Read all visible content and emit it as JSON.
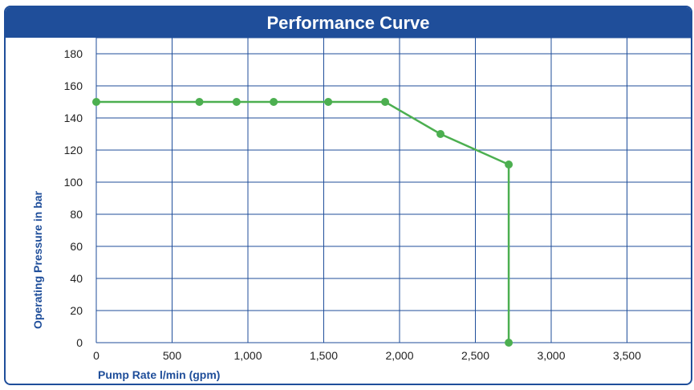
{
  "header": {
    "title": "Performance Curve"
  },
  "chart_data": {
    "type": "line",
    "title": "Performance Curve",
    "xlabel": "Pump Rate l/min (gpm)",
    "ylabel": "Operating Pressure in bar",
    "xlim": [
      0,
      4000
    ],
    "ylim": [
      0,
      190
    ],
    "x_ticks": [
      0,
      500,
      1000,
      1500,
      2000,
      2500,
      3000,
      3500
    ],
    "x_tick_labels": [
      "0",
      "500",
      "1,000",
      "1,500",
      "2,000",
      "2,500",
      "3,000",
      "3,500"
    ],
    "y_ticks": [
      0,
      20,
      40,
      60,
      80,
      100,
      120,
      140,
      160,
      180
    ],
    "y_tick_labels": [
      "0",
      "20",
      "40",
      "60",
      "80",
      "100",
      "120",
      "140",
      "160",
      "180"
    ],
    "grid": true,
    "series": [
      {
        "x": [
          0,
          680,
          925,
          1170,
          1530,
          1905,
          2270,
          2720,
          2720
        ],
        "y": [
          150,
          150,
          150,
          150,
          150,
          150,
          130,
          111,
          0
        ],
        "color": "#4caf50"
      }
    ]
  }
}
